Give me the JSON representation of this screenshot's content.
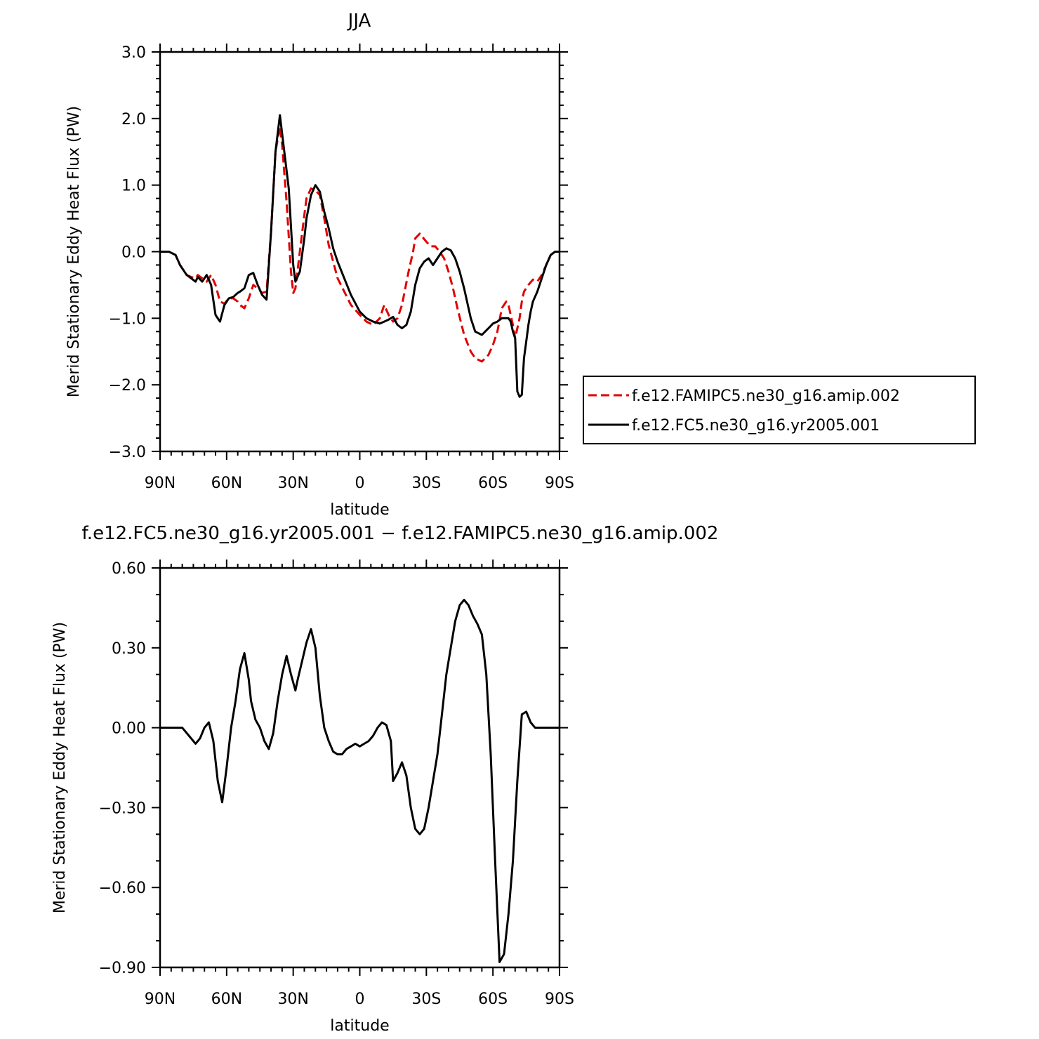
{
  "chart_data": [
    {
      "type": "line",
      "title": "JJA",
      "xlabel": "latitude",
      "ylabel": "Merid Stationary Eddy Heat Flux (PW)",
      "xlim": [
        90,
        -90
      ],
      "ylim": [
        -3.0,
        3.0
      ],
      "x_ticks": [
        "90N",
        "60N",
        "30N",
        "0",
        "30S",
        "60S",
        "90S"
      ],
      "y_ticks": [
        "3.0",
        "2.0",
        "1.0",
        "0.0",
        "−1.0",
        "−2.0",
        "−3.0"
      ],
      "legend": {
        "placement": "right"
      },
      "series": [
        {
          "name": "f.e12.FAMIPC5.ne30_g16.amip.002",
          "color": "#e00000",
          "dash": "dashed",
          "x": [
            90,
            86,
            83,
            81,
            78,
            76,
            74,
            73,
            71,
            69,
            67,
            65,
            63,
            61,
            59,
            57,
            55,
            54,
            52,
            50,
            48,
            46,
            44,
            42,
            40,
            38,
            36,
            35,
            33,
            31,
            30,
            29,
            27,
            25,
            24,
            22,
            20,
            18,
            16,
            14,
            12,
            10,
            7,
            4,
            0,
            -3,
            -6,
            -9,
            -11,
            -13,
            -15,
            -17,
            -19,
            -22,
            -24,
            -25,
            -27,
            -30,
            -32,
            -34,
            -36,
            -38,
            -40,
            -42,
            -44,
            -47,
            -50,
            -52,
            -55,
            -58,
            -60,
            -62,
            -64,
            -66,
            -67,
            -69,
            -70,
            -72,
            -73,
            -74,
            -76,
            -78,
            -80,
            -82,
            -84,
            -86,
            -88,
            -90
          ],
          "y": [
            0,
            0,
            -0.05,
            -0.2,
            -0.35,
            -0.38,
            -0.4,
            -0.35,
            -0.4,
            -0.45,
            -0.35,
            -0.5,
            -0.75,
            -0.78,
            -0.7,
            -0.7,
            -0.75,
            -0.8,
            -0.85,
            -0.7,
            -0.5,
            -0.55,
            -0.62,
            -0.6,
            0.3,
            1.5,
            1.88,
            1.6,
            0.75,
            -0.3,
            -0.62,
            -0.55,
            0.0,
            0.55,
            0.8,
            0.95,
            0.92,
            0.85,
            0.5,
            0.1,
            -0.15,
            -0.4,
            -0.6,
            -0.8,
            -0.95,
            -1.05,
            -1.1,
            -1.0,
            -0.8,
            -0.95,
            -1.05,
            -1.0,
            -0.8,
            -0.3,
            0.0,
            0.2,
            0.27,
            0.15,
            0.08,
            0.08,
            0.0,
            -0.1,
            -0.3,
            -0.55,
            -0.85,
            -1.25,
            -1.5,
            -1.6,
            -1.65,
            -1.55,
            -1.4,
            -1.2,
            -0.85,
            -0.75,
            -0.8,
            -1.1,
            -1.3,
            -1.0,
            -0.75,
            -0.6,
            -0.5,
            -0.42,
            -0.45,
            -0.35,
            -0.2,
            -0.05,
            0,
            0
          ]
        },
        {
          "name": "f.e12.FC5.ne30_g16.yr2005.001",
          "color": "#000000",
          "dash": "solid",
          "x": [
            90,
            86,
            83,
            81,
            78,
            76,
            74,
            73,
            71,
            69,
            67,
            65,
            63,
            61,
            59,
            57,
            55,
            54,
            52,
            50,
            48,
            46,
            44,
            42,
            40,
            38,
            36,
            34,
            32,
            30,
            29,
            27,
            25,
            24,
            22,
            20,
            18,
            16,
            14,
            12,
            10,
            7,
            4,
            0,
            -3,
            -6,
            -9,
            -11,
            -13,
            -15,
            -17,
            -19,
            -21,
            -23,
            -25,
            -27,
            -29,
            -31,
            -33,
            -35,
            -37,
            -39,
            -41,
            -43,
            -45,
            -47,
            -50,
            -52,
            -55,
            -58,
            -60,
            -62,
            -64,
            -66,
            -67,
            -68,
            -69,
            -70,
            -71,
            -72,
            -73,
            -74,
            -75,
            -76,
            -77,
            -78,
            -80,
            -82,
            -84,
            -86,
            -88,
            -90
          ],
          "y": [
            0,
            0,
            -0.05,
            -0.2,
            -0.35,
            -0.4,
            -0.45,
            -0.38,
            -0.45,
            -0.35,
            -0.5,
            -0.95,
            -1.05,
            -0.8,
            -0.7,
            -0.68,
            -0.62,
            -0.6,
            -0.55,
            -0.35,
            -0.32,
            -0.5,
            -0.65,
            -0.72,
            0.3,
            1.5,
            2.05,
            1.5,
            0.95,
            -0.2,
            -0.45,
            -0.3,
            0.2,
            0.5,
            0.85,
            1.0,
            0.9,
            0.6,
            0.35,
            0.05,
            -0.15,
            -0.4,
            -0.65,
            -0.9,
            -1.0,
            -1.05,
            -1.08,
            -1.05,
            -1.02,
            -0.98,
            -1.1,
            -1.15,
            -1.1,
            -0.9,
            -0.5,
            -0.25,
            -0.15,
            -0.1,
            -0.2,
            -0.1,
            0.0,
            0.05,
            0.02,
            -0.1,
            -0.3,
            -0.55,
            -1.0,
            -1.2,
            -1.25,
            -1.15,
            -1.08,
            -1.05,
            -1.0,
            -1.0,
            -1.0,
            -1.05,
            -1.2,
            -1.3,
            -2.1,
            -2.18,
            -2.15,
            -1.6,
            -1.35,
            -1.1,
            -0.9,
            -0.75,
            -0.6,
            -0.4,
            -0.2,
            -0.05,
            0,
            0
          ]
        }
      ]
    },
    {
      "type": "line",
      "title": "f.e12.FC5.ne30_g16.yr2005.001 − f.e12.FAMIPC5.ne30_g16.amip.002",
      "xlabel": "latitude",
      "ylabel": "Merid Stationary Eddy Heat Flux (PW)",
      "xlim": [
        90,
        -90
      ],
      "ylim": [
        -0.9,
        0.6
      ],
      "x_ticks": [
        "90N",
        "60N",
        "30N",
        "0",
        "30S",
        "60S",
        "90S"
      ],
      "y_ticks": [
        "0.60",
        "0.30",
        "0.00",
        "−0.30",
        "−0.60",
        "−0.90"
      ],
      "series": [
        {
          "color": "#000000",
          "dash": "solid",
          "x": [
            90,
            84,
            80,
            77,
            74,
            72,
            70,
            68,
            66,
            64,
            62,
            60,
            58,
            56,
            54,
            52,
            50,
            49,
            47,
            45,
            43,
            41,
            39,
            37,
            35,
            33,
            31,
            29,
            28,
            26,
            24,
            22,
            20,
            18,
            16,
            14,
            12,
            10,
            8,
            6,
            4,
            2,
            0,
            -2,
            -4,
            -6,
            -8,
            -10,
            -12,
            -14,
            -15,
            -17,
            -19,
            -21,
            -23,
            -25,
            -27,
            -29,
            -31,
            -33,
            -35,
            -37,
            -39,
            -41,
            -43,
            -45,
            -47,
            -49,
            -51,
            -53,
            -55,
            -57,
            -59,
            -61,
            -63,
            -65,
            -67,
            -69,
            -71,
            -73,
            -75,
            -77,
            -79,
            -81,
            -83,
            -85,
            -87,
            -90
          ],
          "y": [
            0,
            0,
            0,
            -0.03,
            -0.06,
            -0.04,
            0.0,
            0.02,
            -0.05,
            -0.2,
            -0.28,
            -0.15,
            0.0,
            0.1,
            0.22,
            0.28,
            0.18,
            0.1,
            0.03,
            0.0,
            -0.05,
            -0.08,
            -0.02,
            0.1,
            0.2,
            0.27,
            0.2,
            0.14,
            0.18,
            0.25,
            0.32,
            0.37,
            0.3,
            0.12,
            0.0,
            -0.05,
            -0.09,
            -0.1,
            -0.1,
            -0.08,
            -0.07,
            -0.06,
            -0.07,
            -0.06,
            -0.05,
            -0.03,
            0.0,
            0.02,
            0.01,
            -0.05,
            -0.2,
            -0.17,
            -0.13,
            -0.18,
            -0.3,
            -0.38,
            -0.4,
            -0.38,
            -0.3,
            -0.2,
            -0.1,
            0.05,
            0.2,
            0.3,
            0.4,
            0.46,
            0.48,
            0.46,
            0.42,
            0.39,
            0.35,
            0.2,
            -0.1,
            -0.5,
            -0.88,
            -0.85,
            -0.7,
            -0.5,
            -0.2,
            0.05,
            0.06,
            0.02,
            0.0,
            0.0,
            0.0,
            0.0,
            0.0,
            0.0
          ]
        }
      ]
    }
  ]
}
